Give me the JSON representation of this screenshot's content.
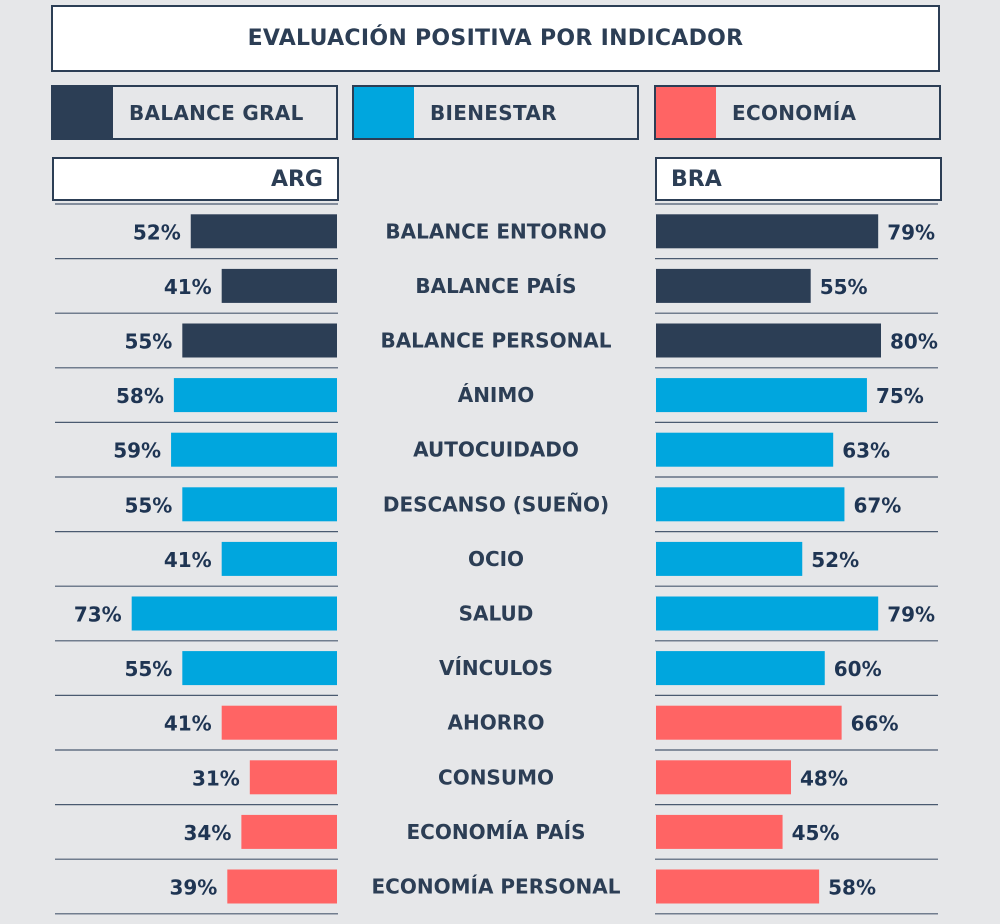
{
  "title": "EVALUACIÓN POSITIVA POR INDICADOR",
  "legend": [
    {
      "label": "BALANCE GRAL",
      "color": "#2c3e55"
    },
    {
      "label": "BIENESTAR",
      "color": "#00a6de"
    },
    {
      "label": "ECONOMÍA",
      "color": "#ff6464"
    }
  ],
  "chart_data": {
    "type": "bar",
    "title": "EVALUACIÓN POSITIVA POR INDICADOR",
    "value_format": "percent",
    "xlim": [
      0,
      100
    ],
    "categories": [
      "BALANCE ENTORNO",
      "BALANCE PAÍS",
      "BALANCE PERSONAL",
      "ÁNIMO",
      "AUTOCUIDADO",
      "DESCANSO (SUEÑO)",
      "OCIO",
      "SALUD",
      "VÍNCULOS",
      "AHORRO",
      "CONSUMO",
      "ECONOMÍA PAÍS",
      "ECONOMÍA PERSONAL"
    ],
    "groups": [
      "BALANCE GRAL",
      "BALANCE GRAL",
      "BALANCE GRAL",
      "BIENESTAR",
      "BIENESTAR",
      "BIENESTAR",
      "BIENESTAR",
      "BIENESTAR",
      "BIENESTAR",
      "ECONOMÍA",
      "ECONOMÍA",
      "ECONOMÍA",
      "ECONOMÍA"
    ],
    "series": [
      {
        "name": "ARG",
        "values": [
          52,
          41,
          55,
          58,
          59,
          55,
          41,
          73,
          55,
          41,
          31,
          34,
          39
        ]
      },
      {
        "name": "BRA",
        "values": [
          79,
          55,
          80,
          75,
          63,
          67,
          52,
          79,
          60,
          66,
          48,
          45,
          58
        ]
      }
    ]
  }
}
